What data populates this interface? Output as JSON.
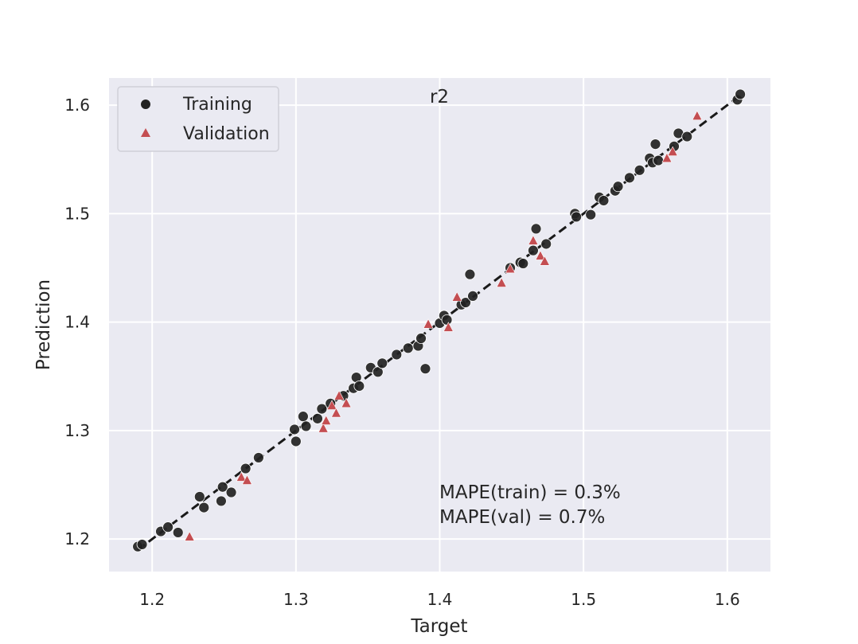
{
  "chart_data": {
    "type": "scatter",
    "title": "r2",
    "xlabel": "Target",
    "ylabel": "Prediction",
    "xlim": [
      1.17,
      1.63
    ],
    "ylim": [
      1.17,
      1.625
    ],
    "xticks": [
      1.2,
      1.3,
      1.4,
      1.5,
      1.6
    ],
    "yticks": [
      1.2,
      1.3,
      1.4,
      1.5,
      1.6
    ],
    "xtick_labels": [
      "1.2",
      "1.3",
      "1.4",
      "1.5",
      "1.6"
    ],
    "ytick_labels": [
      "1.2",
      "1.3",
      "1.4",
      "1.5",
      "1.6"
    ],
    "grid": true,
    "legend_position": "top-left",
    "reference_line": {
      "style": "dashed",
      "color": "#1a1a1a",
      "x": [
        1.19,
        1.61
      ],
      "y": [
        1.19,
        1.61
      ]
    },
    "annotations": [
      "MAPE(train) = 0.3%",
      "MAPE(val) = 0.7%"
    ],
    "series": [
      {
        "name": "Training",
        "marker": "circle",
        "color": "#222222",
        "points": [
          [
            1.19,
            1.193
          ],
          [
            1.193,
            1.195
          ],
          [
            1.206,
            1.207
          ],
          [
            1.211,
            1.211
          ],
          [
            1.218,
            1.206
          ],
          [
            1.233,
            1.239
          ],
          [
            1.236,
            1.229
          ],
          [
            1.248,
            1.235
          ],
          [
            1.249,
            1.248
          ],
          [
            1.255,
            1.243
          ],
          [
            1.265,
            1.265
          ],
          [
            1.274,
            1.275
          ],
          [
            1.299,
            1.301
          ],
          [
            1.3,
            1.29
          ],
          [
            1.305,
            1.313
          ],
          [
            1.307,
            1.304
          ],
          [
            1.315,
            1.311
          ],
          [
            1.318,
            1.32
          ],
          [
            1.324,
            1.325
          ],
          [
            1.333,
            1.332
          ],
          [
            1.34,
            1.339
          ],
          [
            1.342,
            1.349
          ],
          [
            1.344,
            1.341
          ],
          [
            1.352,
            1.358
          ],
          [
            1.357,
            1.354
          ],
          [
            1.36,
            1.362
          ],
          [
            1.37,
            1.37
          ],
          [
            1.378,
            1.376
          ],
          [
            1.385,
            1.378
          ],
          [
            1.387,
            1.385
          ],
          [
            1.39,
            1.357
          ],
          [
            1.4,
            1.399
          ],
          [
            1.403,
            1.406
          ],
          [
            1.405,
            1.402
          ],
          [
            1.415,
            1.416
          ],
          [
            1.418,
            1.418
          ],
          [
            1.421,
            1.444
          ],
          [
            1.423,
            1.424
          ],
          [
            1.449,
            1.45
          ],
          [
            1.456,
            1.455
          ],
          [
            1.458,
            1.454
          ],
          [
            1.465,
            1.466
          ],
          [
            1.467,
            1.486
          ],
          [
            1.474,
            1.472
          ],
          [
            1.494,
            1.5
          ],
          [
            1.495,
            1.497
          ],
          [
            1.505,
            1.499
          ],
          [
            1.511,
            1.515
          ],
          [
            1.514,
            1.512
          ],
          [
            1.522,
            1.521
          ],
          [
            1.524,
            1.525
          ],
          [
            1.532,
            1.533
          ],
          [
            1.539,
            1.54
          ],
          [
            1.546,
            1.551
          ],
          [
            1.548,
            1.547
          ],
          [
            1.55,
            1.564
          ],
          [
            1.552,
            1.549
          ],
          [
            1.563,
            1.562
          ],
          [
            1.566,
            1.574
          ],
          [
            1.572,
            1.571
          ],
          [
            1.607,
            1.605
          ],
          [
            1.609,
            1.61
          ]
        ]
      },
      {
        "name": "Validation",
        "marker": "triangle",
        "color": "#c44e52",
        "points": [
          [
            1.226,
            1.202
          ],
          [
            1.262,
            1.257
          ],
          [
            1.266,
            1.254
          ],
          [
            1.319,
            1.302
          ],
          [
            1.321,
            1.309
          ],
          [
            1.325,
            1.323
          ],
          [
            1.328,
            1.316
          ],
          [
            1.33,
            1.332
          ],
          [
            1.335,
            1.325
          ],
          [
            1.392,
            1.398
          ],
          [
            1.406,
            1.395
          ],
          [
            1.412,
            1.423
          ],
          [
            1.443,
            1.436
          ],
          [
            1.449,
            1.449
          ],
          [
            1.465,
            1.475
          ],
          [
            1.47,
            1.461
          ],
          [
            1.473,
            1.456
          ],
          [
            1.558,
            1.551
          ],
          [
            1.562,
            1.557
          ],
          [
            1.579,
            1.59
          ]
        ]
      }
    ]
  }
}
